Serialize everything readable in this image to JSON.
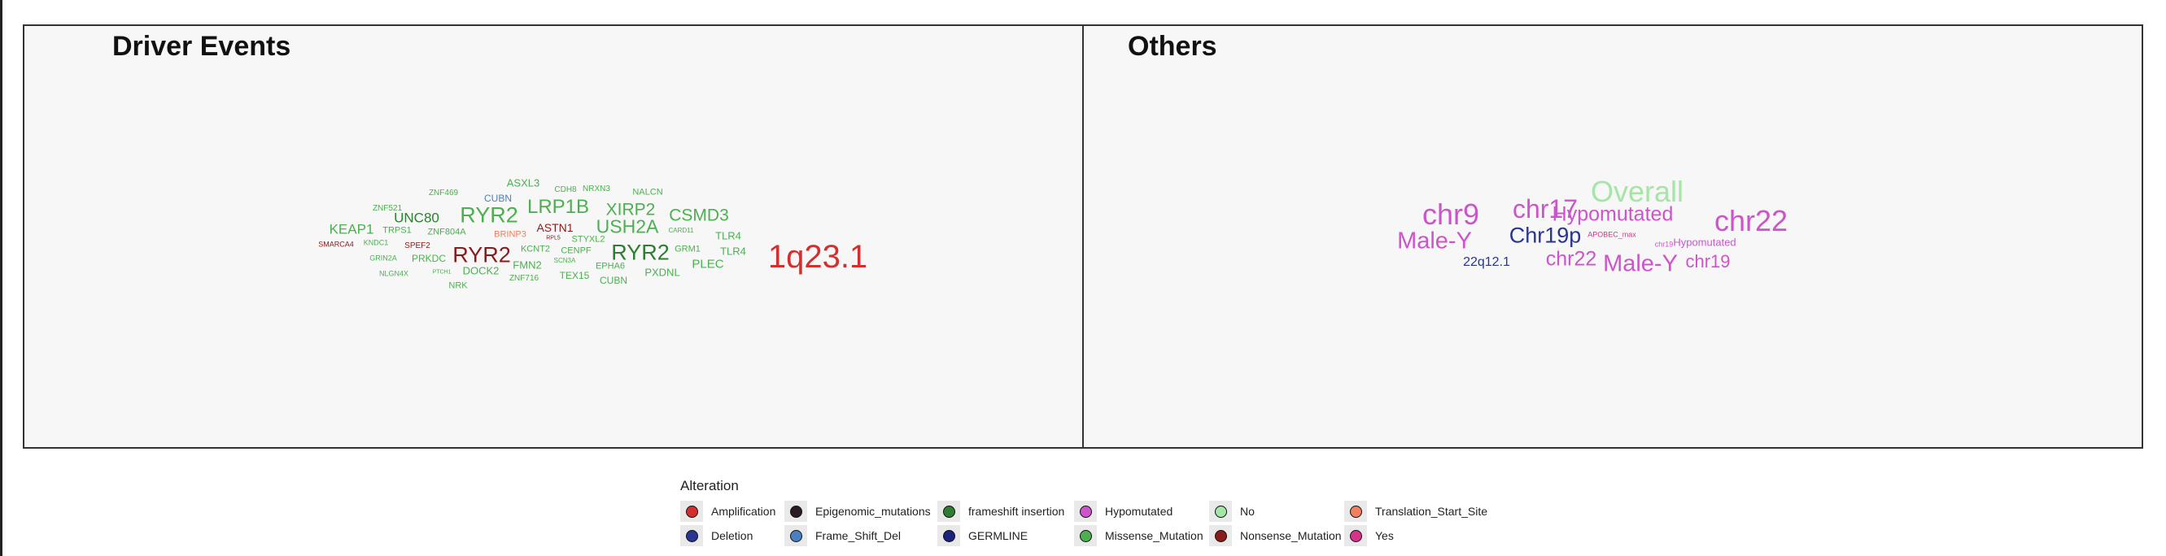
{
  "colors": {
    "Amplification": "#d32f2f",
    "Deletion": "#283593",
    "Epigenomic_mutations": "#2b1b25",
    "Frame_Shift_Del": "#4a7fc1",
    "frameshift insertion": "#2e7d32",
    "GERMLINE": "#1a237e",
    "Hypomutated": "#cc55cc",
    "Missense_Mutation": "#4caf50",
    "No": "#a5e5a5",
    "Nonsense_Mutation": "#8b1a1a",
    "Translation_Start_Site": "#f08060",
    "Yes": "#d6338a"
  },
  "chart_data": [
    {
      "type": "wordcloud",
      "title": "Driver Events",
      "words": [
        {
          "text": "1q23.1",
          "category": "Amplification",
          "weight": 40
        },
        {
          "text": "RYR2",
          "category": "Missense_Mutation",
          "weight": 27
        },
        {
          "text": "RYR2",
          "category": "Nonsense_Mutation",
          "weight": 27
        },
        {
          "text": "RYR2",
          "category": "frameshift insertion",
          "weight": 27
        },
        {
          "text": "LRP1B",
          "category": "Missense_Mutation",
          "weight": 24
        },
        {
          "text": "USH2A",
          "category": "Missense_Mutation",
          "weight": 23
        },
        {
          "text": "CSMD3",
          "category": "Missense_Mutation",
          "weight": 21
        },
        {
          "text": "XIRP2",
          "category": "Missense_Mutation",
          "weight": 21
        },
        {
          "text": "UNC80",
          "category": "frameshift insertion",
          "weight": 17
        },
        {
          "text": "KEAP1",
          "category": "Missense_Mutation",
          "weight": 17
        },
        {
          "text": "PLEC",
          "category": "Missense_Mutation",
          "weight": 15
        },
        {
          "text": "ASTN1",
          "category": "Nonsense_Mutation",
          "weight": 14
        },
        {
          "text": "ASXL3",
          "category": "Missense_Mutation",
          "weight": 13
        },
        {
          "text": "TLR4",
          "category": "Missense_Mutation",
          "weight": 13
        },
        {
          "text": "TLR4",
          "category": "Missense_Mutation",
          "weight": 13
        },
        {
          "text": "PXDNL",
          "category": "Missense_Mutation",
          "weight": 13
        },
        {
          "text": "FMN2",
          "category": "Missense_Mutation",
          "weight": 13
        },
        {
          "text": "DOCK2",
          "category": "Missense_Mutation",
          "weight": 13
        },
        {
          "text": "CUBN",
          "category": "Frame_Shift_Del",
          "weight": 12
        },
        {
          "text": "CUBN",
          "category": "Missense_Mutation",
          "weight": 12
        },
        {
          "text": "PRKDC",
          "category": "Missense_Mutation",
          "weight": 12
        },
        {
          "text": "TEX15",
          "category": "Missense_Mutation",
          "weight": 12
        },
        {
          "text": "NALCN",
          "category": "Missense_Mutation",
          "weight": 11
        },
        {
          "text": "NRK",
          "category": "Missense_Mutation",
          "weight": 11
        },
        {
          "text": "CENPF",
          "category": "Missense_Mutation",
          "weight": 11
        },
        {
          "text": "KCNT2",
          "category": "Missense_Mutation",
          "weight": 11
        },
        {
          "text": "GRM1",
          "category": "Missense_Mutation",
          "weight": 11
        },
        {
          "text": "EPHA6",
          "category": "Missense_Mutation",
          "weight": 11
        },
        {
          "text": "STYXL2",
          "category": "Missense_Mutation",
          "weight": 11
        },
        {
          "text": "TRPS1",
          "category": "Missense_Mutation",
          "weight": 11
        },
        {
          "text": "ZNF804A",
          "category": "Missense_Mutation",
          "weight": 11
        },
        {
          "text": "BRINP3",
          "category": "Translation_Start_Site",
          "weight": 11
        },
        {
          "text": "SPEF2",
          "category": "Nonsense_Mutation",
          "weight": 10
        },
        {
          "text": "CDH8",
          "category": "Missense_Mutation",
          "weight": 10
        },
        {
          "text": "NRXN3",
          "category": "Missense_Mutation",
          "weight": 10
        },
        {
          "text": "ZNF469",
          "category": "Missense_Mutation",
          "weight": 10
        },
        {
          "text": "ZNF521",
          "category": "Missense_Mutation",
          "weight": 10
        },
        {
          "text": "ZNF716",
          "category": "Missense_Mutation",
          "weight": 10
        },
        {
          "text": "KNDC1",
          "category": "Missense_Mutation",
          "weight": 9
        },
        {
          "text": "GRIN2A",
          "category": "Missense_Mutation",
          "weight": 9
        },
        {
          "text": "NLGN4X",
          "category": "Missense_Mutation",
          "weight": 9
        },
        {
          "text": "SMARCA4",
          "category": "Nonsense_Mutation",
          "weight": 9
        },
        {
          "text": "SCN3A",
          "category": "Missense_Mutation",
          "weight": 8
        },
        {
          "text": "CARD11",
          "category": "Missense_Mutation",
          "weight": 8
        },
        {
          "text": "PTCH1",
          "category": "Missense_Mutation",
          "weight": 7
        },
        {
          "text": "RPL5",
          "category": "Nonsense_Mutation",
          "weight": 7
        }
      ]
    },
    {
      "type": "wordcloud",
      "title": "Others",
      "words": [
        {
          "text": "Overall",
          "category": "No",
          "weight": 36
        },
        {
          "text": "chr9",
          "category": "Hypomutated",
          "weight": 36
        },
        {
          "text": "chr22",
          "category": "Hypomutated",
          "weight": 36
        },
        {
          "text": "chr17",
          "category": "Hypomutated",
          "weight": 32
        },
        {
          "text": "Male-Y",
          "category": "Hypomutated",
          "weight": 29
        },
        {
          "text": "Male-Y",
          "category": "Hypomutated",
          "weight": 29
        },
        {
          "text": "Hypomutated",
          "category": "Hypomutated",
          "weight": 25
        },
        {
          "text": "Chr19p",
          "category": "Deletion",
          "weight": 27
        },
        {
          "text": "chr22",
          "category": "Hypomutated",
          "weight": 25
        },
        {
          "text": "chr19",
          "category": "Hypomutated",
          "weight": 22
        },
        {
          "text": "22q12.1",
          "category": "Deletion",
          "weight": 16
        },
        {
          "text": "Hypomutated",
          "category": "Hypomutated",
          "weight": 13
        },
        {
          "text": "APOBEC_max",
          "category": "Yes",
          "weight": 9
        },
        {
          "text": "chr19",
          "category": "Hypomutated",
          "weight": 9
        }
      ]
    }
  ],
  "legend": {
    "title": "Alteration",
    "items": [
      "Amplification",
      "Deletion",
      "Epigenomic_mutations",
      "Frame_Shift_Del",
      "frameshift insertion",
      "GERMLINE",
      "Hypomutated",
      "Missense_Mutation",
      "No",
      "Nonsense_Mutation",
      "Translation_Start_Site",
      "Yes"
    ]
  }
}
